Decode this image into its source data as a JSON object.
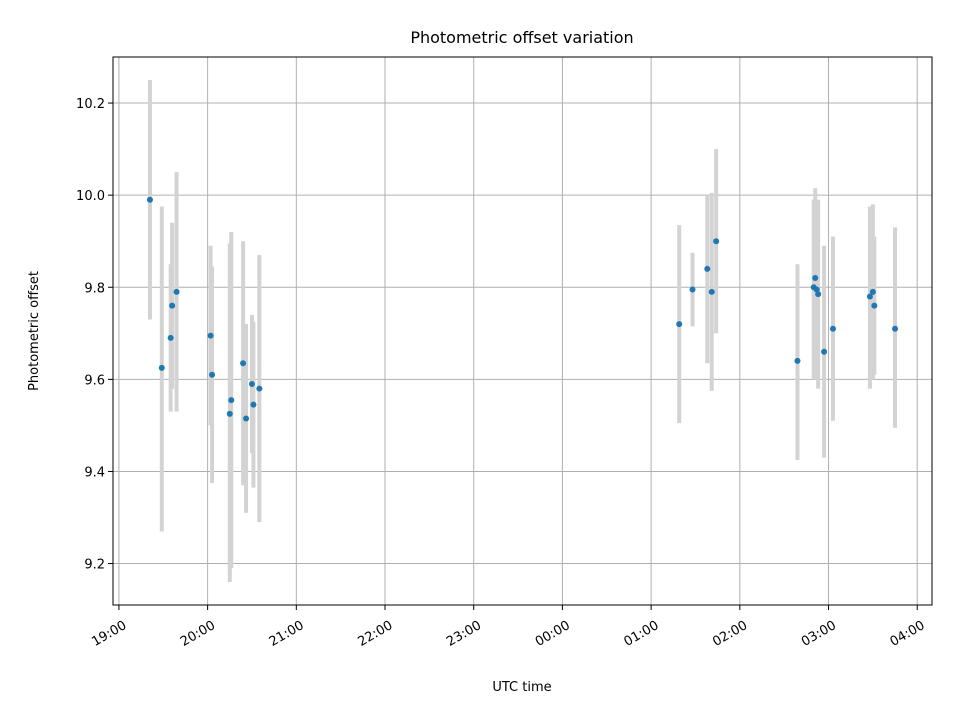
{
  "chart_data": {
    "type": "scatter",
    "title": "Photometric offset variation",
    "xlabel": "UTC time",
    "ylabel": "Photometric offset",
    "xlim": [
      "2023-01-01T18:56:00",
      "2023-01-02T04:10:00"
    ],
    "ylim": [
      9.11,
      10.3
    ],
    "grid": true,
    "x_ticks": [
      {
        "t": "2023-01-01T19:00:00",
        "label": "19:00"
      },
      {
        "t": "2023-01-01T20:00:00",
        "label": "20:00"
      },
      {
        "t": "2023-01-01T21:00:00",
        "label": "21:00"
      },
      {
        "t": "2023-01-01T22:00:00",
        "label": "22:00"
      },
      {
        "t": "2023-01-01T23:00:00",
        "label": "23:00"
      },
      {
        "t": "2023-01-02T00:00:00",
        "label": "00:00"
      },
      {
        "t": "2023-01-02T01:00:00",
        "label": "01:00"
      },
      {
        "t": "2023-01-02T02:00:00",
        "label": "02:00"
      },
      {
        "t": "2023-01-02T03:00:00",
        "label": "03:00"
      },
      {
        "t": "2023-01-02T04:00:00",
        "label": "04:00"
      }
    ],
    "y_ticks": [
      9.2,
      9.4,
      9.6,
      9.8,
      10.0,
      10.2
    ],
    "y_tick_labels": [
      "9.2",
      "9.4",
      "9.6",
      "9.8",
      "10.0",
      "10.2"
    ],
    "colors": {
      "point": "#1f77b4",
      "errorbar": "#d3d3d3"
    },
    "points": [
      {
        "t": "2023-01-01T19:21:00",
        "y": 9.99,
        "lo": 9.73,
        "hi": 10.25
      },
      {
        "t": "2023-01-01T19:29:00",
        "y": 9.625,
        "lo": 9.27,
        "hi": 9.975
      },
      {
        "t": "2023-01-01T19:35:00",
        "y": 9.69,
        "lo": 9.53,
        "hi": 9.85
      },
      {
        "t": "2023-01-01T19:36:00",
        "y": 9.76,
        "lo": 9.58,
        "hi": 9.94
      },
      {
        "t": "2023-01-01T19:39:00",
        "y": 9.79,
        "lo": 9.53,
        "hi": 10.05
      },
      {
        "t": "2023-01-01T20:02:00",
        "y": 9.695,
        "lo": 9.5,
        "hi": 9.89
      },
      {
        "t": "2023-01-01T20:03:00",
        "y": 9.61,
        "lo": 9.375,
        "hi": 9.845
      },
      {
        "t": "2023-01-01T20:15:00",
        "y": 9.525,
        "lo": 9.16,
        "hi": 9.895
      },
      {
        "t": "2023-01-01T20:16:00",
        "y": 9.555,
        "lo": 9.19,
        "hi": 9.92
      },
      {
        "t": "2023-01-01T20:24:00",
        "y": 9.635,
        "lo": 9.37,
        "hi": 9.9
      },
      {
        "t": "2023-01-01T20:26:00",
        "y": 9.515,
        "lo": 9.31,
        "hi": 9.72
      },
      {
        "t": "2023-01-01T20:30:00",
        "y": 9.59,
        "lo": 9.44,
        "hi": 9.74
      },
      {
        "t": "2023-01-01T20:31:00",
        "y": 9.545,
        "lo": 9.365,
        "hi": 9.725
      },
      {
        "t": "2023-01-01T20:35:00",
        "y": 9.58,
        "lo": 9.29,
        "hi": 9.87
      },
      {
        "t": "2023-01-02T01:19:00",
        "y": 9.72,
        "lo": 9.505,
        "hi": 9.935
      },
      {
        "t": "2023-01-02T01:28:00",
        "y": 9.795,
        "lo": 9.715,
        "hi": 9.875
      },
      {
        "t": "2023-01-02T01:38:00",
        "y": 9.84,
        "lo": 9.635,
        "hi": 10.0
      },
      {
        "t": "2023-01-02T01:41:00",
        "y": 9.79,
        "lo": 9.575,
        "hi": 10.005
      },
      {
        "t": "2023-01-02T01:44:00",
        "y": 9.9,
        "lo": 9.7,
        "hi": 10.1
      },
      {
        "t": "2023-01-02T02:39:00",
        "y": 9.64,
        "lo": 9.425,
        "hi": 9.85
      },
      {
        "t": "2023-01-02T02:50:00",
        "y": 9.8,
        "lo": 9.6,
        "hi": 9.99
      },
      {
        "t": "2023-01-02T02:51:00",
        "y": 9.82,
        "lo": 9.62,
        "hi": 10.015
      },
      {
        "t": "2023-01-02T02:52:00",
        "y": 9.795,
        "lo": 9.6,
        "hi": 9.99
      },
      {
        "t": "2023-01-02T02:53:00",
        "y": 9.785,
        "lo": 9.58,
        "hi": 9.99
      },
      {
        "t": "2023-01-02T02:57:00",
        "y": 9.66,
        "lo": 9.43,
        "hi": 9.89
      },
      {
        "t": "2023-01-02T03:03:00",
        "y": 9.71,
        "lo": 9.51,
        "hi": 9.91
      },
      {
        "t": "2023-01-02T03:28:00",
        "y": 9.78,
        "lo": 9.58,
        "hi": 9.975
      },
      {
        "t": "2023-01-02T03:30:00",
        "y": 9.79,
        "lo": 9.6,
        "hi": 9.98
      },
      {
        "t": "2023-01-02T03:31:00",
        "y": 9.76,
        "lo": 9.61,
        "hi": 9.91
      },
      {
        "t": "2023-01-02T03:45:00",
        "y": 9.71,
        "lo": 9.495,
        "hi": 9.93
      }
    ]
  }
}
